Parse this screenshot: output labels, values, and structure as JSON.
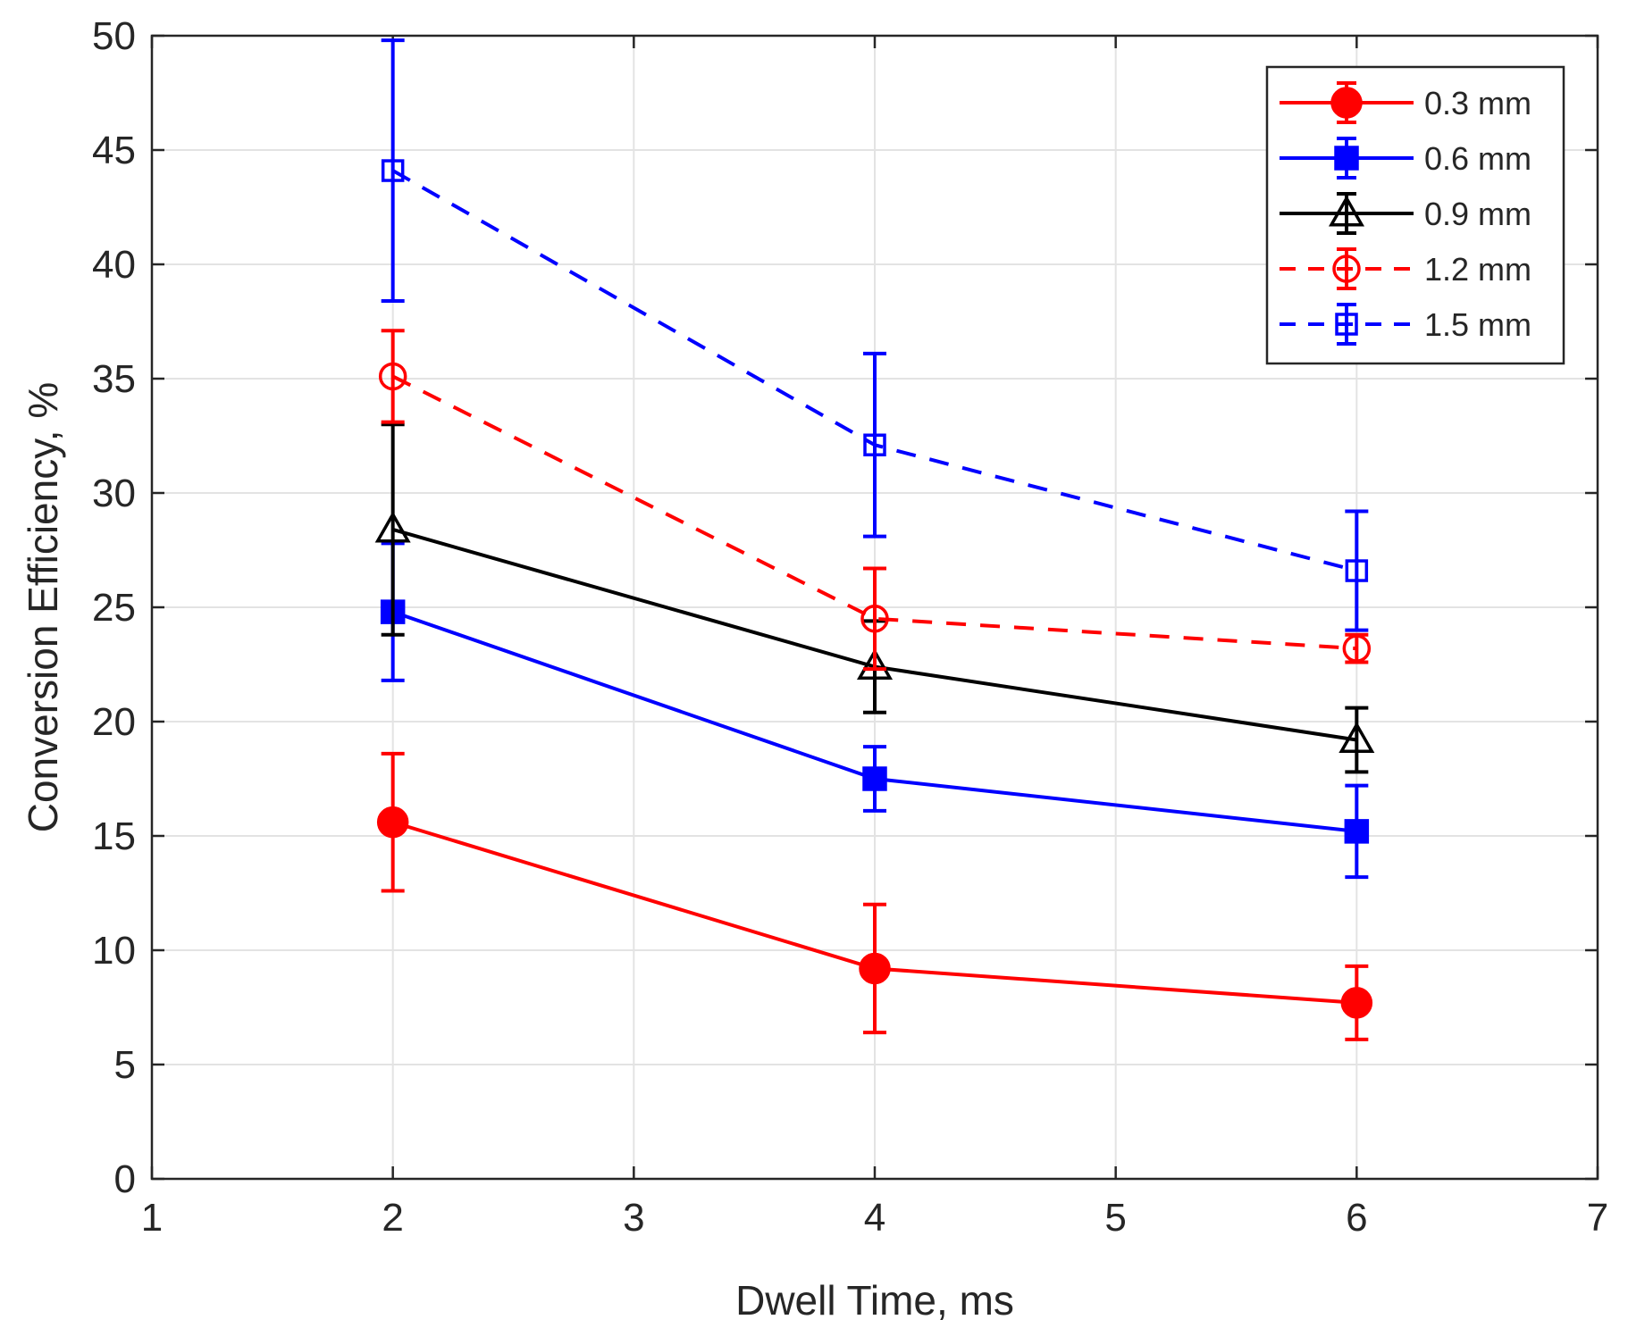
{
  "chart_data": {
    "type": "line",
    "title": "",
    "xlabel": "Dwell Time, ms",
    "ylabel": "Conversion Efficiency, %",
    "xlim": [
      1,
      7
    ],
    "ylim": [
      0,
      50
    ],
    "xticks": [
      1,
      2,
      3,
      4,
      5,
      6,
      7
    ],
    "yticks": [
      0,
      5,
      10,
      15,
      20,
      25,
      30,
      35,
      40,
      45,
      50
    ],
    "grid": true,
    "legend_position": "top-right",
    "x": [
      2,
      4,
      6
    ],
    "series": [
      {
        "name": "0.3 mm",
        "color": "#ff0000",
        "line": "solid",
        "marker": "filled-circle",
        "values": [
          15.6,
          9.2,
          7.7
        ],
        "errors": [
          3.0,
          2.8,
          1.6
        ]
      },
      {
        "name": "0.6 mm",
        "color": "#0000ff",
        "line": "solid",
        "marker": "filled-square",
        "values": [
          24.8,
          17.5,
          15.2
        ],
        "errors": [
          3.0,
          1.4,
          2.0
        ]
      },
      {
        "name": "0.9 mm",
        "color": "#000000",
        "line": "solid",
        "marker": "open-triangle",
        "values": [
          28.4,
          22.4,
          19.2
        ],
        "errors": [
          4.6,
          2.0,
          1.4
        ]
      },
      {
        "name": "1.2 mm",
        "color": "#ff0000",
        "line": "dashed",
        "marker": "open-circle",
        "values": [
          35.1,
          24.5,
          23.2
        ],
        "errors": [
          2.0,
          2.2,
          0.6
        ]
      },
      {
        "name": "1.5 mm",
        "color": "#0000ff",
        "line": "dashed",
        "marker": "open-square",
        "values": [
          44.1,
          32.1,
          26.6
        ],
        "errors": [
          5.7,
          4.0,
          2.6
        ]
      }
    ]
  }
}
